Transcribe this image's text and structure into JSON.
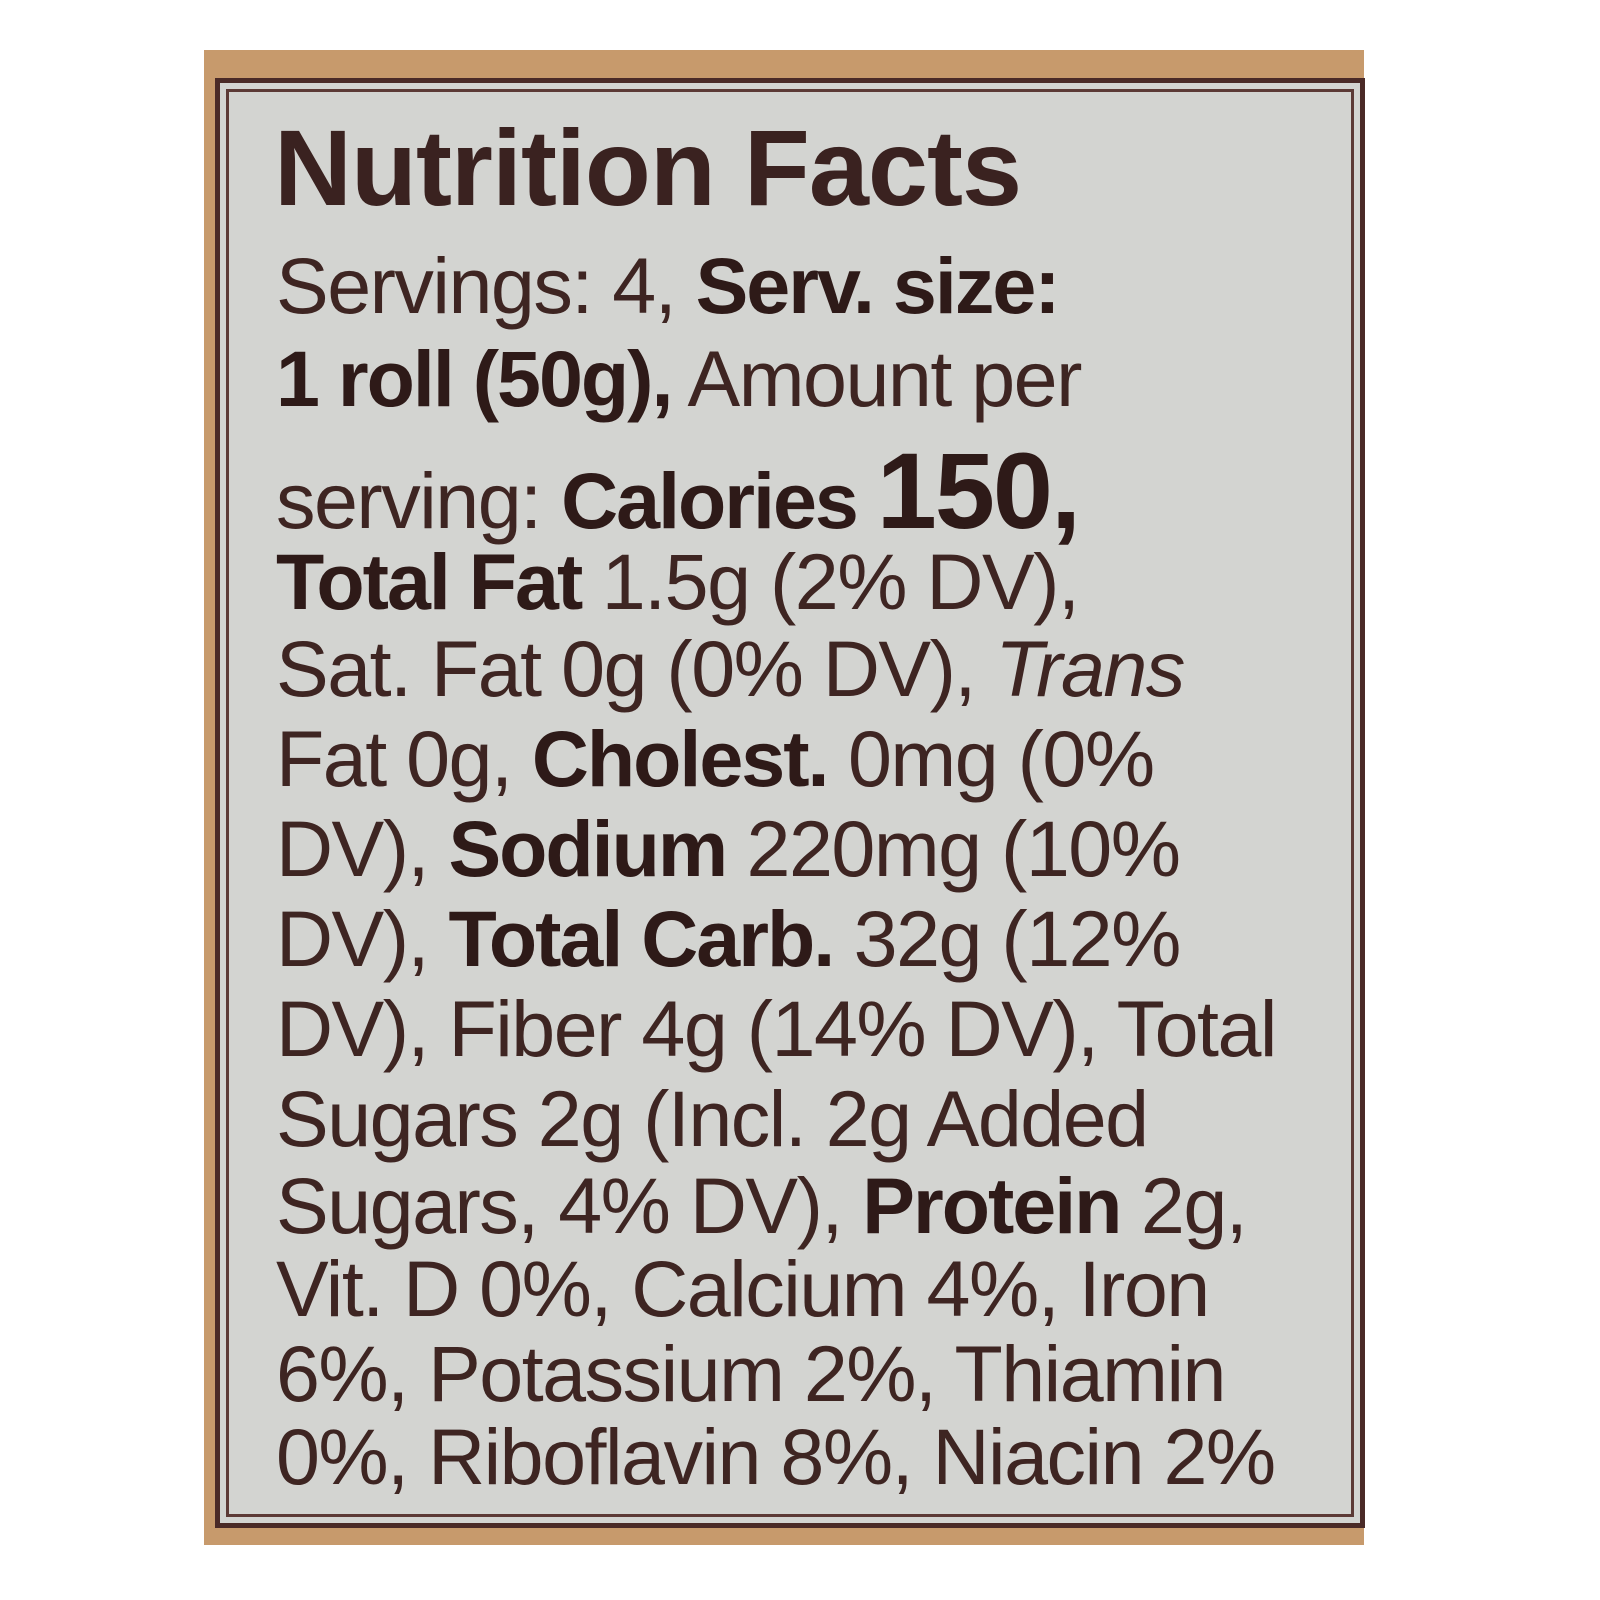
{
  "title": "Nutrition Facts",
  "lines": [
    [
      {
        "t": "Servings: 4, ",
        "s": ""
      },
      {
        "t": "Serv. size:",
        "s": "b"
      }
    ],
    [
      {
        "t": "1 roll (50g),",
        "s": "b"
      },
      {
        "t": " Amount per",
        "s": ""
      }
    ],
    [
      {
        "t": "serving: ",
        "s": ""
      },
      {
        "t": "Calories ",
        "s": "b"
      },
      {
        "t": "150,",
        "s": "b big"
      }
    ],
    [
      {
        "t": "Total Fat",
        "s": "b"
      },
      {
        "t": " 1.5g (2% DV),",
        "s": ""
      }
    ],
    [
      {
        "t": "Sat. Fat 0g (0% DV), ",
        "s": ""
      },
      {
        "t": "Trans",
        "s": "i"
      }
    ],
    [
      {
        "t": "Fat 0g, ",
        "s": ""
      },
      {
        "t": "Cholest.",
        "s": "b"
      },
      {
        "t": " 0mg (0%",
        "s": ""
      }
    ],
    [
      {
        "t": "DV), ",
        "s": ""
      },
      {
        "t": "Sodium",
        "s": "b"
      },
      {
        "t": " 220mg (10%",
        "s": ""
      }
    ],
    [
      {
        "t": "DV), ",
        "s": ""
      },
      {
        "t": "Total Carb.",
        "s": "b"
      },
      {
        "t": " 32g (12%",
        "s": ""
      }
    ],
    [
      {
        "t": "DV), Fiber 4g (14% DV), Total",
        "s": ""
      }
    ],
    [
      {
        "t": "Sugars 2g (Incl. 2g Added",
        "s": ""
      }
    ],
    [
      {
        "t": "Sugars, 4% DV), ",
        "s": ""
      },
      {
        "t": "Protein",
        "s": "b"
      },
      {
        "t": " 2g,",
        "s": ""
      }
    ],
    [
      {
        "t": "Vit. D 0%,  Calcium 4%, Iron",
        "s": ""
      }
    ],
    [
      {
        "t": "6%,  Potassium 2%, Thiamin",
        "s": ""
      }
    ],
    [
      {
        "t": "0%,   Riboflavin 8%, Niacin 2%",
        "s": ""
      }
    ]
  ],
  "colors": {
    "ink": "#3e2522",
    "label_bg": "#d3d4d1",
    "package": "#c79a6c"
  }
}
